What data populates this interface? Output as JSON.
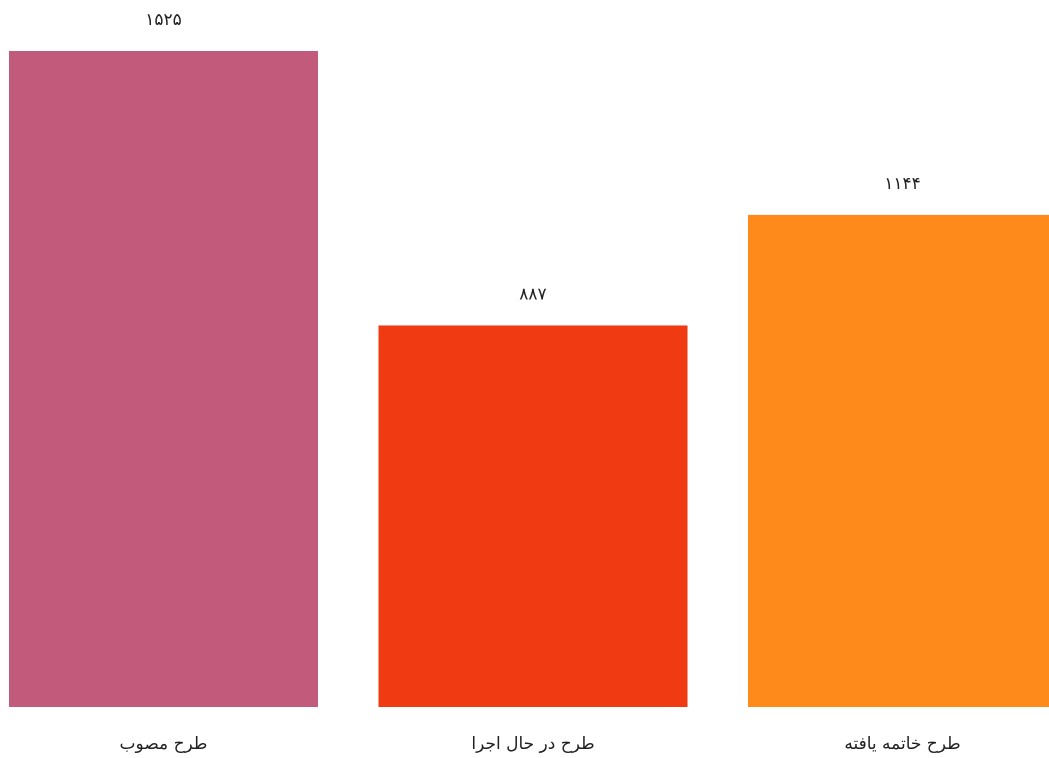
{
  "chart_data": {
    "type": "bar",
    "categories": [
      "طرح مصوب",
      "طرح در حال اجرا",
      "طرح خاتمه یافته"
    ],
    "values": [
      1525,
      887,
      1144
    ],
    "value_labels": [
      "۱۵۲۵",
      "۸۸۷",
      "۱۱۴۴"
    ],
    "colors": [
      "#c25a7c",
      "#f03a12",
      "#fd8a1a"
    ]
  }
}
